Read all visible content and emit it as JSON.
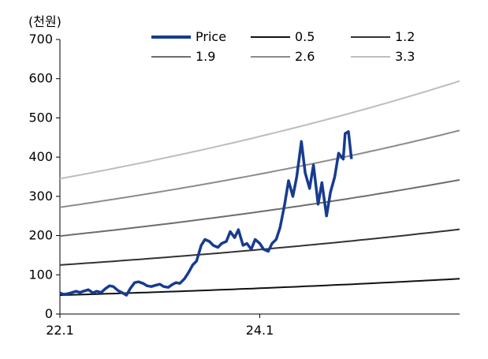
{
  "chart_data": {
    "type": "line",
    "unit_label": "(천원)",
    "ylim": [
      0,
      700
    ],
    "y_ticks": [
      0,
      100,
      200,
      300,
      400,
      500,
      600,
      700
    ],
    "x_range": [
      "2022-01",
      "2025-12"
    ],
    "x_ticks": [
      {
        "at": "2022-01",
        "label": "22.1"
      },
      {
        "at": "2024-01",
        "label": "24.1"
      }
    ],
    "grid": false,
    "legend_position": "top",
    "series": [
      {
        "name": "Price",
        "color": "#173c8f",
        "emphasis": true,
        "points": [
          [
            "2022-01",
            54
          ],
          [
            "2022-01-15",
            50
          ],
          [
            "2022-02",
            52
          ],
          [
            "2022-02-15",
            55
          ],
          [
            "2022-03",
            58
          ],
          [
            "2022-03-15",
            55
          ],
          [
            "2022-04",
            59
          ],
          [
            "2022-04-15",
            62
          ],
          [
            "2022-05",
            54
          ],
          [
            "2022-05-15",
            58
          ],
          [
            "2022-06",
            55
          ],
          [
            "2022-06-15",
            64
          ],
          [
            "2022-07",
            72
          ],
          [
            "2022-07-15",
            70
          ],
          [
            "2022-08",
            60
          ],
          [
            "2022-08-15",
            55
          ],
          [
            "2022-09",
            48
          ],
          [
            "2022-09-15",
            65
          ],
          [
            "2022-10",
            80
          ],
          [
            "2022-10-15",
            82
          ],
          [
            "2022-11",
            78
          ],
          [
            "2022-11-15",
            72
          ],
          [
            "2022-12",
            70
          ],
          [
            "2022-12-15",
            73
          ],
          [
            "2023-01",
            76
          ],
          [
            "2023-01-15",
            70
          ],
          [
            "2023-02",
            68
          ],
          [
            "2023-02-15",
            75
          ],
          [
            "2023-03",
            80
          ],
          [
            "2023-03-15",
            78
          ],
          [
            "2023-04",
            90
          ],
          [
            "2023-04-15",
            105
          ],
          [
            "2023-05",
            125
          ],
          [
            "2023-05-15",
            135
          ],
          [
            "2023-06",
            175
          ],
          [
            "2023-06-15",
            190
          ],
          [
            "2023-07",
            185
          ],
          [
            "2023-07-15",
            175
          ],
          [
            "2023-08",
            170
          ],
          [
            "2023-08-15",
            180
          ],
          [
            "2023-09",
            185
          ],
          [
            "2023-09-15",
            210
          ],
          [
            "2023-10",
            195
          ],
          [
            "2023-10-15",
            215
          ],
          [
            "2023-11",
            175
          ],
          [
            "2023-11-15",
            180
          ],
          [
            "2023-12",
            165
          ],
          [
            "2023-12-15",
            190
          ],
          [
            "2024-01",
            180
          ],
          [
            "2024-01-15",
            165
          ],
          [
            "2024-02",
            160
          ],
          [
            "2024-02-15",
            180
          ],
          [
            "2024-03",
            190
          ],
          [
            "2024-03-15",
            220
          ],
          [
            "2024-04",
            280
          ],
          [
            "2024-04-15",
            340
          ],
          [
            "2024-05",
            300
          ],
          [
            "2024-05-15",
            350
          ],
          [
            "2024-06",
            440
          ],
          [
            "2024-06-15",
            360
          ],
          [
            "2024-07",
            320
          ],
          [
            "2024-07-15",
            380
          ],
          [
            "2024-08",
            280
          ],
          [
            "2024-08-15",
            335
          ],
          [
            "2024-09",
            250
          ],
          [
            "2024-09-15",
            310
          ],
          [
            "2024-10",
            350
          ],
          [
            "2024-10-15",
            410
          ],
          [
            "2024-11",
            395
          ],
          [
            "2024-11-08",
            460
          ],
          [
            "2024-11-20",
            465
          ],
          [
            "2024-12-01",
            395
          ]
        ]
      },
      {
        "name": "0.5",
        "color": "#111111",
        "width": 2,
        "start": 48,
        "end": 90
      },
      {
        "name": "1.2",
        "color": "#333333",
        "width": 2,
        "start": 125,
        "end": 216
      },
      {
        "name": "1.9",
        "color": "#6d6d6d",
        "width": 2,
        "start": 199,
        "end": 342
      },
      {
        "name": "2.6",
        "color": "#8c8c8c",
        "width": 2,
        "start": 272,
        "end": 468
      },
      {
        "name": "3.3",
        "color": "#bdbdbd",
        "width": 2,
        "start": 345,
        "end": 594
      }
    ]
  }
}
